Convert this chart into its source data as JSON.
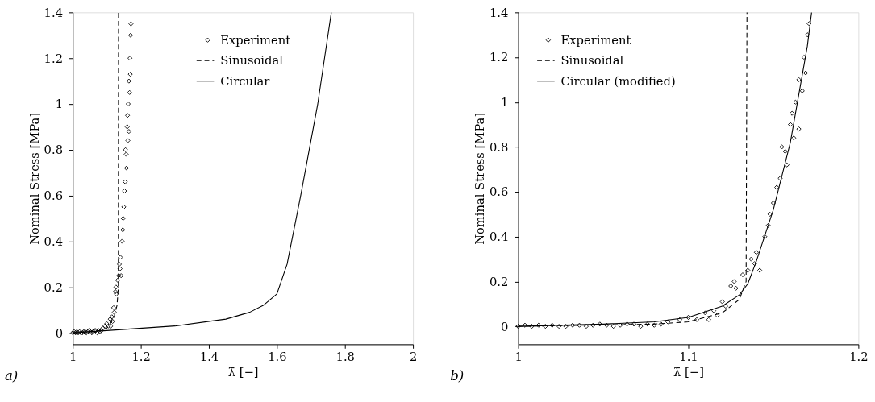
{
  "chart_data": [
    {
      "type": "scatter",
      "xlabel": "λ̄ [−]",
      "ylabel": "Nominal Stress [MPa]",
      "annotations": [
        "a)"
      ],
      "xlim": [
        1,
        2
      ],
      "ylim": [
        -0.05,
        1.4
      ],
      "xticks": [
        1,
        1.2,
        1.4,
        1.6,
        1.8,
        2
      ],
      "yticks": [
        0,
        0.2,
        0.4,
        0.6,
        0.8,
        1,
        1.2,
        1.4
      ],
      "grid": false,
      "legend": "top right",
      "series": [
        {
          "name": "Experiment",
          "marker": "diamond",
          "color": "#000000",
          "x": [
            1.0,
            1.004,
            1.008,
            1.012,
            1.016,
            1.02,
            1.024,
            1.028,
            1.032,
            1.036,
            1.04,
            1.044,
            1.048,
            1.052,
            1.056,
            1.06,
            1.064,
            1.068,
            1.072,
            1.076,
            1.08,
            1.084,
            1.088,
            1.095,
            1.1,
            1.105,
            1.11,
            1.112,
            1.115,
            1.117,
            1.12,
            1.122,
            1.125,
            1.127,
            1.128,
            1.132,
            1.135,
            1.137,
            1.139,
            1.14,
            1.142,
            1.145,
            1.147,
            1.148,
            1.15,
            1.152,
            1.154,
            1.155,
            1.157,
            1.158,
            1.16,
            1.161,
            1.162,
            1.163,
            1.165,
            1.165,
            1.167,
            1.168,
            1.169,
            1.17,
            1.171
          ],
          "values": [
            0.0,
            0.005,
            0.0,
            0.005,
            0.0,
            0.005,
            0.0,
            0.0,
            0.005,
            0.005,
            0.0,
            0.005,
            0.01,
            0.005,
            0.0,
            0.005,
            0.01,
            0.01,
            0.0,
            0.01,
            0.005,
            0.01,
            0.02,
            0.03,
            0.04,
            0.03,
            0.06,
            0.03,
            0.07,
            0.05,
            0.11,
            0.09,
            0.18,
            0.2,
            0.17,
            0.23,
            0.25,
            0.3,
            0.28,
            0.33,
            0.25,
            0.4,
            0.45,
            0.5,
            0.55,
            0.62,
            0.66,
            0.8,
            0.78,
            0.72,
            0.9,
            0.95,
            0.84,
            1.0,
            1.1,
            0.88,
            1.05,
            1.2,
            1.13,
            1.3,
            1.35
          ]
        },
        {
          "name": "Sinusoidal",
          "type": "line",
          "line_style": "dashed",
          "color": "#000000",
          "x": [
            1.0,
            1.08,
            1.1,
            1.12,
            1.13,
            1.134,
            1.1345
          ],
          "values": [
            0.0,
            0.01,
            0.02,
            0.06,
            0.12,
            0.2,
            1.4
          ]
        },
        {
          "name": "Circular",
          "type": "line",
          "line_style": "solid",
          "color": "#000000",
          "x": [
            1.0,
            1.1,
            1.3,
            1.45,
            1.52,
            1.56,
            1.6,
            1.63,
            1.67,
            1.72,
            1.76
          ],
          "values": [
            0.0,
            0.01,
            0.03,
            0.06,
            0.09,
            0.12,
            0.17,
            0.3,
            0.6,
            1.0,
            1.4
          ]
        }
      ]
    },
    {
      "type": "scatter",
      "xlabel": "λ̄ [−]",
      "ylabel": "Nominal Stress [MPa]",
      "annotations": [
        "b)"
      ],
      "xlim": [
        1,
        1.2
      ],
      "ylim": [
        -0.08,
        1.4
      ],
      "xticks": [
        1,
        1.1,
        1.2
      ],
      "yticks": [
        0,
        0.2,
        0.4,
        0.6,
        0.8,
        1,
        1.2,
        1.4
      ],
      "grid": false,
      "legend": "top left",
      "series": [
        {
          "name": "Experiment",
          "marker": "diamond",
          "color": "#000000",
          "x": [
            1.0,
            1.004,
            1.008,
            1.012,
            1.016,
            1.02,
            1.024,
            1.028,
            1.032,
            1.036,
            1.04,
            1.044,
            1.048,
            1.052,
            1.056,
            1.06,
            1.064,
            1.068,
            1.072,
            1.076,
            1.08,
            1.084,
            1.088,
            1.095,
            1.1,
            1.105,
            1.11,
            1.112,
            1.115,
            1.117,
            1.12,
            1.122,
            1.125,
            1.127,
            1.128,
            1.132,
            1.135,
            1.137,
            1.139,
            1.14,
            1.142,
            1.145,
            1.147,
            1.148,
            1.15,
            1.152,
            1.154,
            1.155,
            1.157,
            1.158,
            1.16,
            1.161,
            1.162,
            1.163,
            1.165,
            1.165,
            1.167,
            1.168,
            1.169,
            1.17,
            1.171
          ],
          "values": [
            0.0,
            0.005,
            0.0,
            0.005,
            0.0,
            0.005,
            0.0,
            0.0,
            0.005,
            0.005,
            0.0,
            0.005,
            0.01,
            0.005,
            0.0,
            0.005,
            0.01,
            0.01,
            0.0,
            0.01,
            0.005,
            0.01,
            0.02,
            0.03,
            0.04,
            0.03,
            0.06,
            0.03,
            0.07,
            0.05,
            0.11,
            0.09,
            0.18,
            0.2,
            0.17,
            0.23,
            0.25,
            0.3,
            0.28,
            0.33,
            0.25,
            0.4,
            0.45,
            0.5,
            0.55,
            0.62,
            0.66,
            0.8,
            0.78,
            0.72,
            0.9,
            0.95,
            0.84,
            1.0,
            1.1,
            0.88,
            1.05,
            1.2,
            1.13,
            1.3,
            1.35
          ]
        },
        {
          "name": "Sinusoidal",
          "type": "line",
          "line_style": "dashed",
          "color": "#000000",
          "x": [
            1.0,
            1.08,
            1.1,
            1.12,
            1.13,
            1.134,
            1.1345
          ],
          "values": [
            0.0,
            0.01,
            0.02,
            0.06,
            0.12,
            0.2,
            1.4
          ]
        },
        {
          "name": "Circular (modified)",
          "type": "line",
          "line_style": "solid",
          "color": "#000000",
          "x": [
            1.0,
            1.05,
            1.08,
            1.1,
            1.12,
            1.13,
            1.135,
            1.14,
            1.15,
            1.16,
            1.17,
            1.1725
          ],
          "values": [
            0.0,
            0.01,
            0.02,
            0.04,
            0.09,
            0.14,
            0.19,
            0.29,
            0.52,
            0.82,
            1.25,
            1.4
          ]
        }
      ]
    }
  ]
}
